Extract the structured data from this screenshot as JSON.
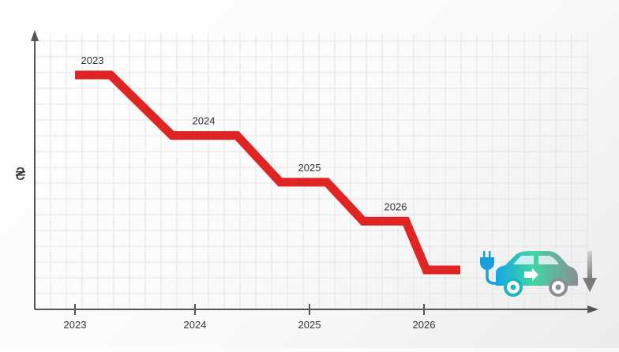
{
  "chart_data": {
    "type": "line",
    "title": "",
    "xlabel": "",
    "ylabel": "₴",
    "x_ticks": [
      "2023",
      "2024",
      "2025",
      "2026"
    ],
    "grid": true,
    "line_style": "step-down",
    "ylim": [
      0,
      100
    ],
    "series": [
      {
        "points": [
          {
            "year": "2023",
            "value": 100
          },
          {
            "year": "2024",
            "value": 69
          },
          {
            "year": "2025",
            "value": 45
          },
          {
            "year": "2026",
            "value": 25
          }
        ],
        "color": "#e02424"
      }
    ],
    "icons": {
      "car": "electric-car-icon",
      "trend": "down-arrow-icon"
    }
  }
}
